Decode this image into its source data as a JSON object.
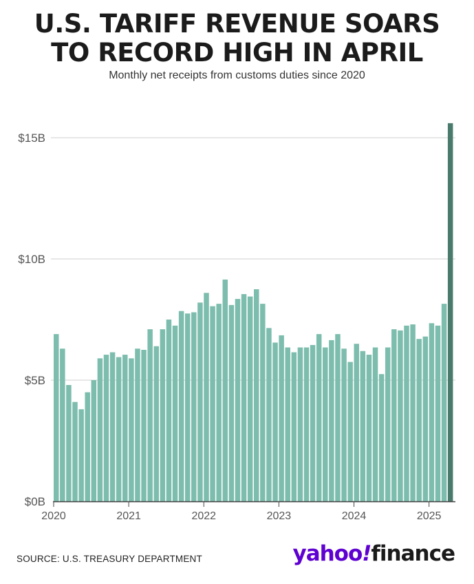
{
  "title_lines": [
    "U.S. TARIFF REVENUE SOARS",
    "TO RECORD HIGH IN APRIL"
  ],
  "subtitle": "Monthly net receipts from customs duties since 2020",
  "source": "SOURCE: U.S. TREASURY DEPARTMENT",
  "logo": {
    "part1": "yahoo",
    "part2": "!",
    "part3": "finance"
  },
  "colors": {
    "bar": "#7dbdad",
    "highlight": "#4a7a6c",
    "grid": "#cfcfcf",
    "axis": "#444444",
    "text": "#555555",
    "brand": "#5f01d1"
  },
  "chart_data": {
    "type": "bar",
    "title": "U.S. TARIFF REVENUE SOARS TO RECORD HIGH IN APRIL",
    "subtitle": "Monthly net receipts from customs duties since 2020",
    "xlabel": "",
    "ylabel": "",
    "ylim": [
      0,
      15
    ],
    "yticks": [
      0,
      5,
      10,
      15
    ],
    "ytick_labels": [
      "$0B",
      "$5B",
      "$10B",
      "$15B"
    ],
    "xtick_labels": [
      "2020",
      "2021",
      "2022",
      "2023",
      "2024",
      "2025"
    ],
    "unit": "billion USD",
    "grid": true,
    "categories": [
      "2020-01",
      "2020-02",
      "2020-03",
      "2020-04",
      "2020-05",
      "2020-06",
      "2020-07",
      "2020-08",
      "2020-09",
      "2020-10",
      "2020-11",
      "2020-12",
      "2021-01",
      "2021-02",
      "2021-03",
      "2021-04",
      "2021-05",
      "2021-06",
      "2021-07",
      "2021-08",
      "2021-09",
      "2021-10",
      "2021-11",
      "2021-12",
      "2022-01",
      "2022-02",
      "2022-03",
      "2022-04",
      "2022-05",
      "2022-06",
      "2022-07",
      "2022-08",
      "2022-09",
      "2022-10",
      "2022-11",
      "2022-12",
      "2023-01",
      "2023-02",
      "2023-03",
      "2023-04",
      "2023-05",
      "2023-06",
      "2023-07",
      "2023-08",
      "2023-09",
      "2023-10",
      "2023-11",
      "2023-12",
      "2024-01",
      "2024-02",
      "2024-03",
      "2024-04",
      "2024-05",
      "2024-06",
      "2024-07",
      "2024-08",
      "2024-09",
      "2024-10",
      "2024-11",
      "2024-12",
      "2025-01",
      "2025-02",
      "2025-03",
      "2025-04"
    ],
    "values": [
      6.9,
      6.3,
      4.8,
      4.1,
      3.8,
      4.5,
      5.0,
      5.9,
      6.05,
      6.15,
      5.95,
      6.05,
      5.9,
      6.3,
      6.25,
      7.1,
      6.4,
      7.1,
      7.5,
      7.25,
      7.85,
      7.75,
      7.8,
      8.2,
      8.6,
      8.05,
      8.15,
      9.15,
      8.1,
      8.35,
      8.55,
      8.45,
      8.75,
      8.15,
      7.15,
      6.55,
      6.85,
      6.35,
      6.15,
      6.35,
      6.35,
      6.45,
      6.9,
      6.35,
      6.65,
      6.9,
      6.3,
      5.75,
      6.5,
      6.2,
      6.05,
      6.35,
      5.25,
      6.35,
      7.1,
      7.05,
      7.25,
      7.3,
      6.7,
      6.8,
      7.35,
      7.25,
      8.15,
      15.6
    ],
    "highlight_index": 63
  }
}
